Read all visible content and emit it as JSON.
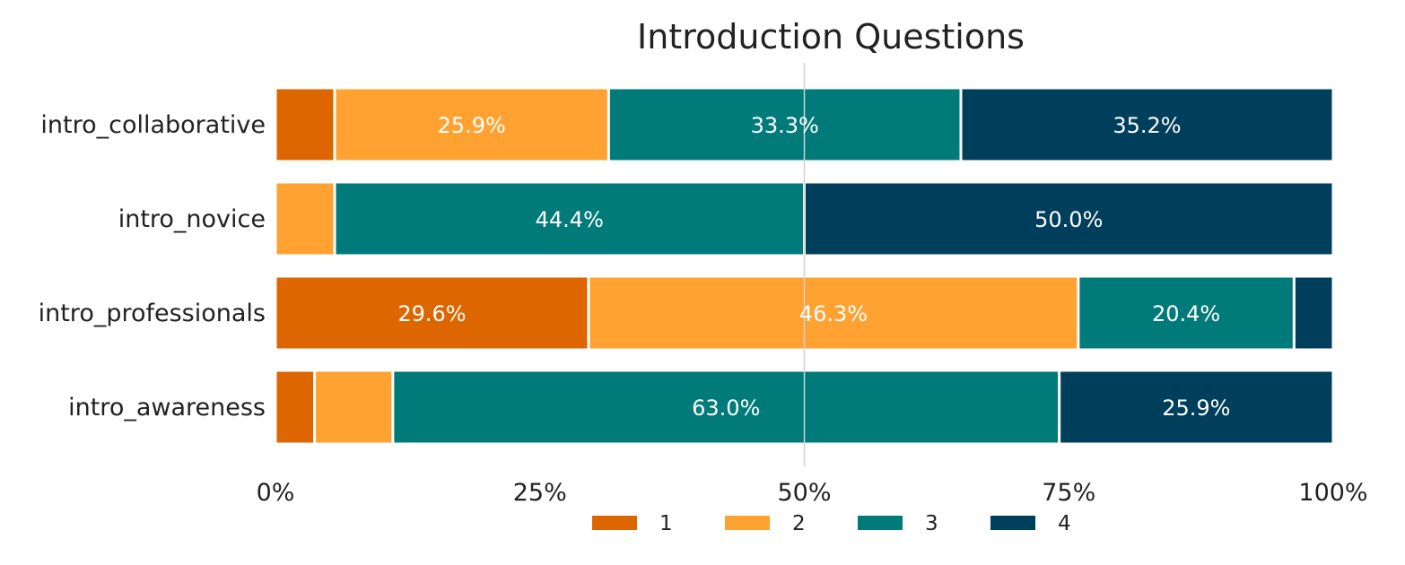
{
  "chart_data": {
    "type": "bar",
    "orientation": "horizontal",
    "stacked": true,
    "normalized": true,
    "title": "Introduction Questions",
    "xlabel": "",
    "ylabel": "",
    "xlim": [
      0,
      100
    ],
    "x_ticks": [
      "0%",
      "25%",
      "50%",
      "75%",
      "100%"
    ],
    "reference_line_x": 50,
    "grid": false,
    "legend_position": "bottom-center",
    "categories": [
      "intro_collaborative",
      "intro_novice",
      "intro_professionals",
      "intro_awareness"
    ],
    "series": [
      {
        "name": "1",
        "color": "#DD6600",
        "values": [
          5.6,
          0.0,
          29.6,
          3.7
        ],
        "labels": [
          "",
          "",
          "29.6%",
          ""
        ]
      },
      {
        "name": "2",
        "color": "#FFA231",
        "values": [
          25.9,
          5.6,
          46.3,
          7.4
        ],
        "labels": [
          "25.9%",
          "",
          "46.3%",
          ""
        ]
      },
      {
        "name": "3",
        "color": "#007B7A",
        "values": [
          33.3,
          44.4,
          20.4,
          63.0
        ],
        "labels": [
          "33.3%",
          "44.4%",
          "20.4%",
          "63.0%"
        ]
      },
      {
        "name": "4",
        "color": "#003F5C",
        "values": [
          35.2,
          50.0,
          3.7,
          25.9
        ],
        "labels": [
          "35.2%",
          "50.0%",
          "",
          "25.9%"
        ]
      }
    ]
  }
}
